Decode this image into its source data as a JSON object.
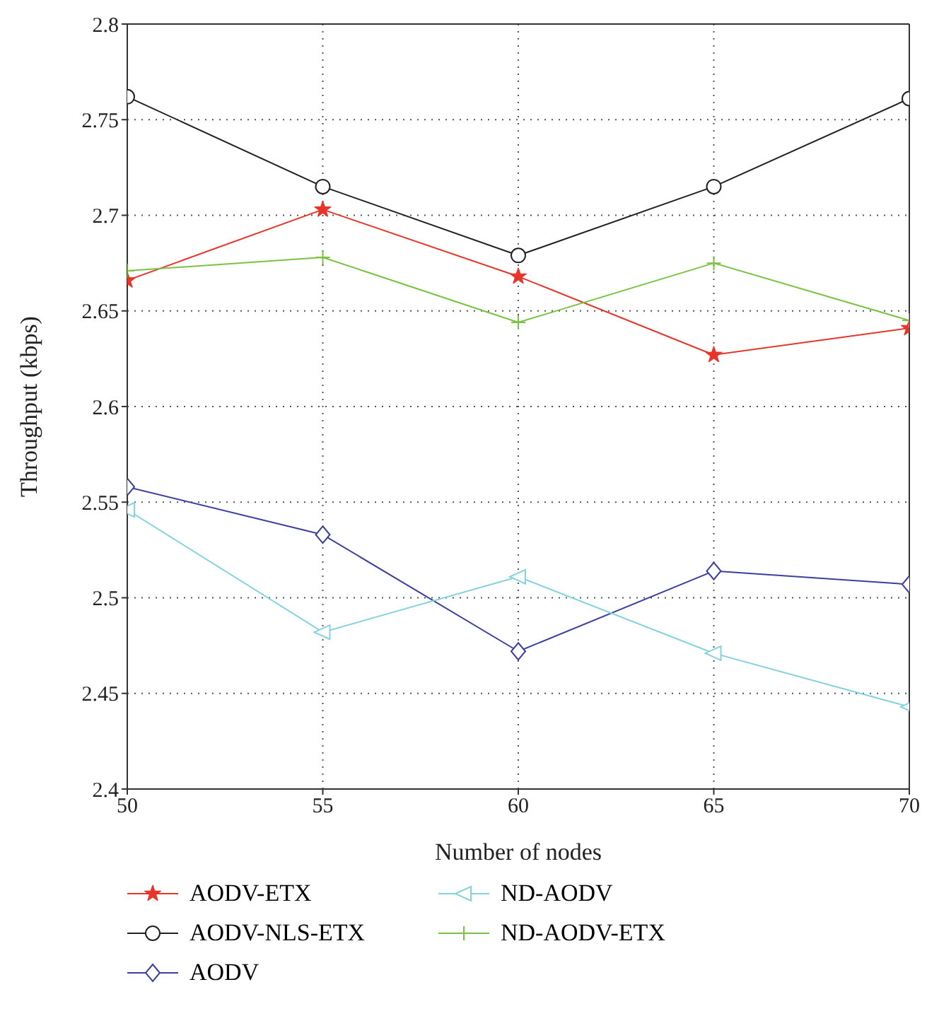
{
  "chart_data": {
    "type": "line",
    "xlabel": "Number of nodes",
    "ylabel": "Throughput (kbps)",
    "x": [
      50,
      55,
      60,
      65,
      70
    ],
    "xlim": [
      50,
      70
    ],
    "xticks": [
      50,
      55,
      60,
      65,
      70
    ],
    "ylim": [
      2.4,
      2.8
    ],
    "yticks": [
      2.4,
      2.45,
      2.5,
      2.55,
      2.6,
      2.65,
      2.7,
      2.75,
      2.8
    ],
    "grid": true,
    "legend": "bottom",
    "line_style": "solid",
    "series": [
      {
        "name": "AODV-ETX",
        "color": "#e8352a",
        "marker": "star",
        "values": [
          2.666,
          2.703,
          2.668,
          2.627,
          2.641
        ]
      },
      {
        "name": "AODV-NLS-ETX",
        "color": "#222222",
        "marker": "circle",
        "values": [
          2.762,
          2.715,
          2.679,
          2.715,
          2.761
        ]
      },
      {
        "name": "AODV",
        "color": "#3b3fa0",
        "marker": "diamond",
        "values": [
          2.558,
          2.533,
          2.472,
          2.514,
          2.507
        ]
      },
      {
        "name": "ND-AODV",
        "color": "#86d3e0",
        "marker": "triangle",
        "values": [
          2.546,
          2.482,
          2.511,
          2.471,
          2.443
        ]
      },
      {
        "name": "ND-AODV-ETX",
        "color": "#7cc242",
        "marker": "cross",
        "values": [
          2.671,
          2.678,
          2.644,
          2.675,
          2.645
        ]
      }
    ]
  }
}
